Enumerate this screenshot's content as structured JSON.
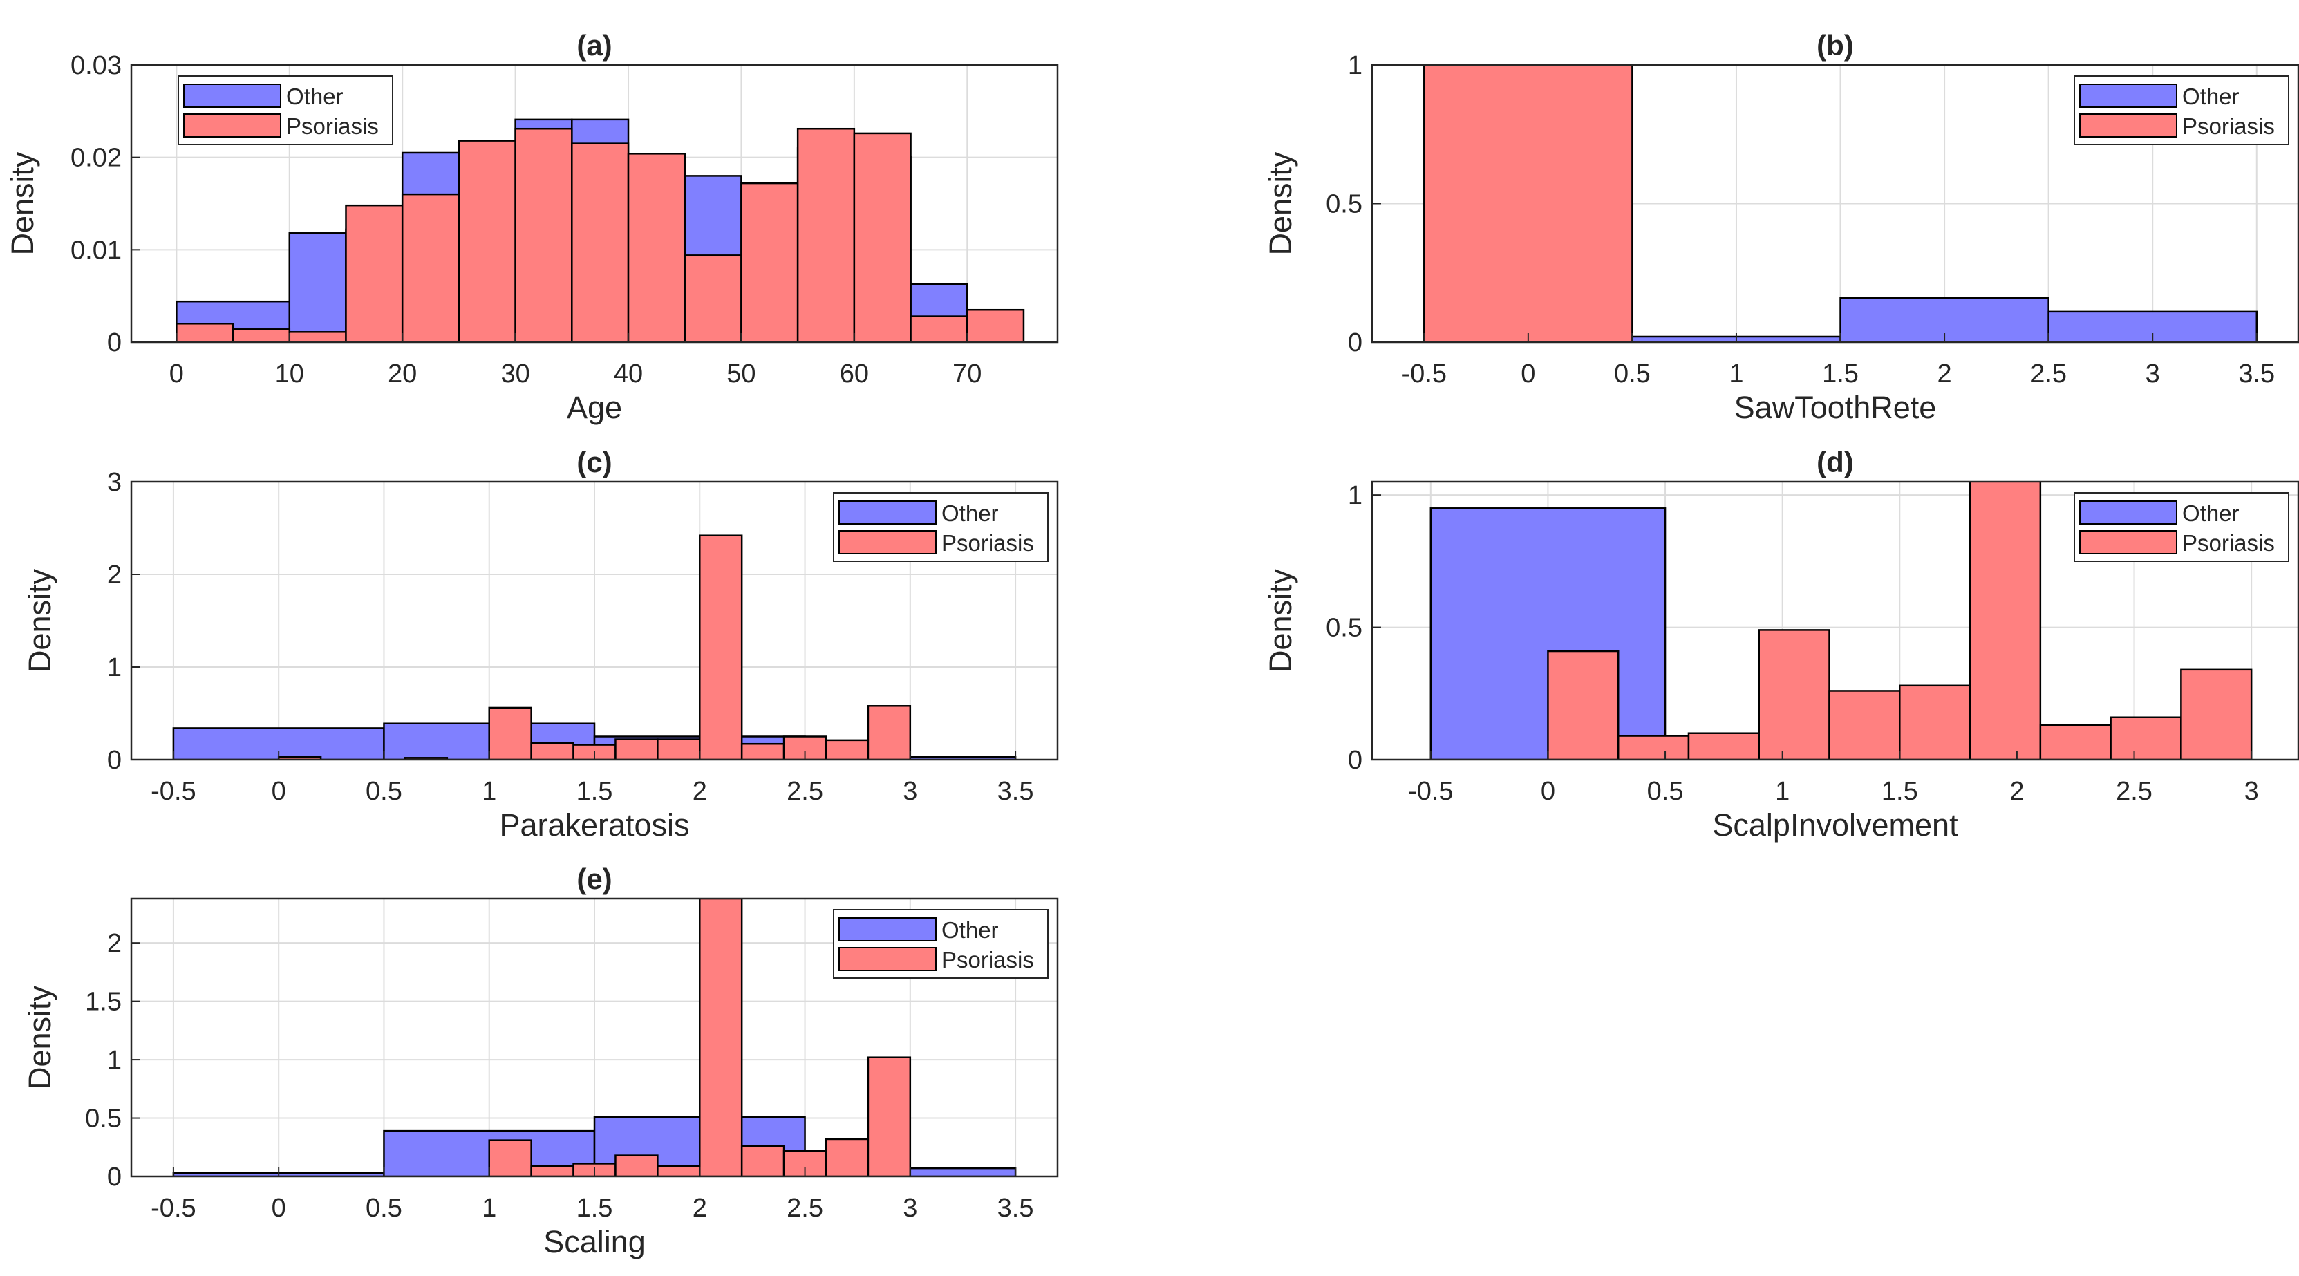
{
  "colors": {
    "other": "#8080ff",
    "psoriasis": "#ff8080",
    "edge": "#000000",
    "grid": "#dcdcdc"
  },
  "legend": {
    "other": "Other",
    "psoriasis": "Psoriasis"
  },
  "chart_data": [
    {
      "id": "a",
      "type": "histogram",
      "title": "(a)",
      "xlabel": "Age",
      "ylabel": "Density",
      "xlim": [
        -4,
        78
      ],
      "ylim": [
        0,
        0.03
      ],
      "xticks": [
        0,
        10,
        20,
        30,
        40,
        50,
        60,
        70
      ],
      "xtick_labels": [
        "0",
        "10",
        "20",
        "30",
        "40",
        "50",
        "60",
        "70"
      ],
      "yticks": [
        0,
        0.01,
        0.02,
        0.03
      ],
      "ytick_labels": [
        "0",
        "0.01",
        "0.02",
        "0.03"
      ],
      "legend_position": "top-left",
      "series": [
        {
          "name": "Other",
          "edges": [
            0,
            10,
            15,
            20,
            25,
            30,
            35,
            40,
            45,
            50,
            55,
            60,
            65,
            70
          ],
          "values": [
            0.0044,
            0.0118,
            0.0122,
            0.0205,
            0.0215,
            0.0241,
            0.0241,
            0.0204,
            0.018,
            0.0088,
            0.021,
            0.0201,
            0.0063
          ]
        },
        {
          "name": "Psoriasis",
          "edges": [
            0,
            5,
            10,
            15,
            20,
            25,
            30,
            35,
            40,
            45,
            50,
            55,
            60,
            65,
            70,
            75
          ],
          "values": [
            0.002,
            0.0014,
            0.0011,
            0.0148,
            0.016,
            0.0218,
            0.0231,
            0.0215,
            0.0204,
            0.0094,
            0.0172,
            0.0231,
            0.0226,
            0.0028,
            0.0035
          ]
        }
      ]
    },
    {
      "id": "b",
      "type": "histogram",
      "title": "(b)",
      "xlabel": "SawToothRete",
      "ylabel": "Density",
      "xlim": [
        -0.75,
        3.7
      ],
      "ylim": [
        0,
        1
      ],
      "xticks": [
        -0.5,
        0,
        0.5,
        1,
        1.5,
        2,
        2.5,
        3,
        3.5
      ],
      "xtick_labels": [
        "-0.5",
        "0",
        "0.5",
        "1",
        "1.5",
        "2",
        "2.5",
        "3",
        "3.5"
      ],
      "yticks": [
        0,
        0.5,
        1
      ],
      "ytick_labels": [
        "0",
        "0.5",
        "1"
      ],
      "legend_position": "top-right",
      "series": [
        {
          "name": "Other",
          "edges": [
            -0.5,
            0.5,
            1.5,
            2.5,
            3.5
          ],
          "values": [
            0.0,
            0.02,
            0.16,
            0.11
          ]
        },
        {
          "name": "Psoriasis",
          "edges": [
            -0.5,
            0.5
          ],
          "values": [
            1.0
          ]
        }
      ]
    },
    {
      "id": "c",
      "type": "histogram",
      "title": "(c)",
      "xlabel": "Parakeratosis",
      "ylabel": "Density",
      "xlim": [
        -0.7,
        3.7
      ],
      "ylim": [
        0,
        3
      ],
      "xticks": [
        -0.5,
        0,
        0.5,
        1,
        1.5,
        2,
        2.5,
        3,
        3.5
      ],
      "xtick_labels": [
        "-0.5",
        "0",
        "0.5",
        "1",
        "1.5",
        "2",
        "2.5",
        "3",
        "3.5"
      ],
      "yticks": [
        0,
        1,
        2,
        3
      ],
      "ytick_labels": [
        "0",
        "1",
        "2",
        "3"
      ],
      "legend_position": "top-right",
      "series": [
        {
          "name": "Other",
          "edges": [
            -0.5,
            0.5,
            1,
            1.5,
            2.1,
            2.5,
            2.9,
            3.5
          ],
          "values": [
            0.34,
            0.39,
            0.39,
            0.25,
            0.25,
            0.06,
            0.03
          ]
        },
        {
          "name": "Psoriasis",
          "edges": [
            0,
            0.2,
            0.6,
            0.8,
            1,
            1.2,
            1.4,
            1.6,
            1.8,
            2,
            2.2,
            2.4,
            2.6,
            2.8,
            3
          ],
          "values": [
            0.03,
            0,
            0.02,
            0,
            0.56,
            0.18,
            0.16,
            0.22,
            0.22,
            2.42,
            0.17,
            0.25,
            0.21,
            0.58
          ]
        }
      ]
    },
    {
      "id": "d",
      "type": "histogram",
      "title": "(d)",
      "xlabel": "ScalpInvolvement",
      "ylabel": "Density",
      "xlim": [
        -0.75,
        3.2
      ],
      "ylim": [
        0,
        1.05
      ],
      "xticks": [
        -0.5,
        0,
        0.5,
        1,
        1.5,
        2,
        2.5,
        3
      ],
      "xtick_labels": [
        "-0.5",
        "0",
        "0.5",
        "1",
        "1.5",
        "2",
        "2.5",
        "3"
      ],
      "yticks": [
        0,
        0.5,
        1
      ],
      "ytick_labels": [
        "0",
        "0.5",
        "1"
      ],
      "legend_position": "top-right",
      "series": [
        {
          "name": "Other",
          "edges": [
            -0.5,
            0.5
          ],
          "values": [
            0.95
          ]
        },
        {
          "name": "Psoriasis",
          "edges": [
            0,
            0.3,
            0.6,
            0.9,
            1.2,
            1.5,
            1.8,
            2.1,
            2.4,
            2.7,
            3
          ],
          "values": [
            0.41,
            0.09,
            0.1,
            0.49,
            0.26,
            0.28,
            1.1,
            0.13,
            0.16,
            0.34
          ]
        }
      ]
    },
    {
      "id": "e",
      "type": "histogram",
      "title": "(e)",
      "xlabel": "Scaling",
      "ylabel": "Density",
      "xlim": [
        -0.7,
        3.7
      ],
      "ylim": [
        0,
        2.38
      ],
      "xticks": [
        -0.5,
        0,
        0.5,
        1,
        1.5,
        2,
        2.5,
        3,
        3.5
      ],
      "xtick_labels": [
        "-0.5",
        "0",
        "0.5",
        "1",
        "1.5",
        "2",
        "2.5",
        "3",
        "3.5"
      ],
      "yticks": [
        0,
        0.5,
        1,
        1.5,
        2
      ],
      "ytick_labels": [
        "0",
        "0.5",
        "1",
        "1.5",
        "2"
      ],
      "legend_position": "top-right",
      "series": [
        {
          "name": "Other",
          "edges": [
            -0.5,
            0.5,
            1.5,
            2.5,
            3.5
          ],
          "values": [
            0.03,
            0.39,
            0.51,
            0.07
          ]
        },
        {
          "name": "Psoriasis",
          "edges": [
            1,
            1.2,
            1.4,
            1.6,
            1.8,
            2,
            2.2,
            2.4,
            2.6,
            2.8,
            3
          ],
          "values": [
            0.31,
            0.09,
            0.11,
            0.18,
            0.09,
            2.38,
            0.26,
            0.22,
            0.32,
            1.02
          ]
        }
      ]
    }
  ]
}
